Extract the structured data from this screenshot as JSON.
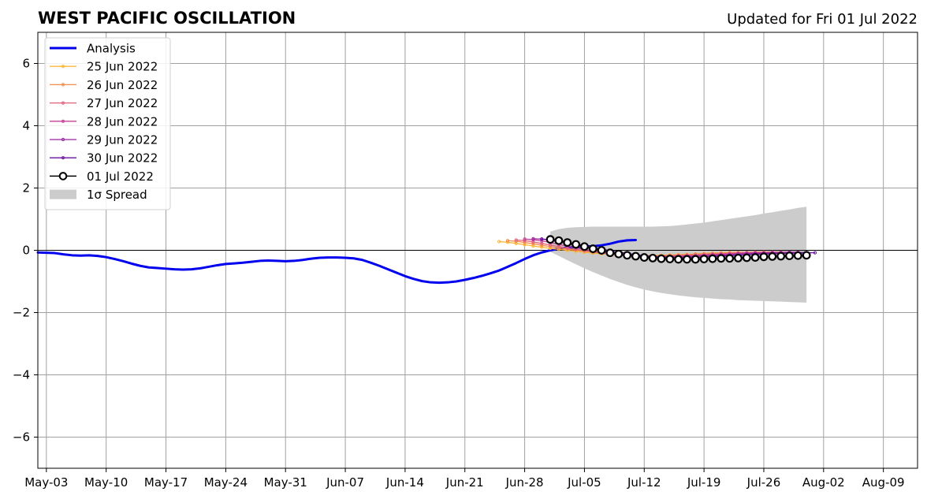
{
  "chart_data": {
    "type": "line",
    "title": "WEST PACIFIC OSCILLATION",
    "subtitle": "Updated for Fri 01 Jul 2022",
    "xlabel": "",
    "ylabel": "",
    "x_range": [
      "2022-05-02",
      "2022-08-13"
    ],
    "ylim": [
      -7,
      7
    ],
    "y_ticks": [
      -6,
      -4,
      -2,
      0,
      2,
      4,
      6
    ],
    "y_tick_labels": [
      "−6",
      "−4",
      "−2",
      "0",
      "2",
      "4",
      "6"
    ],
    "x_ticks": [
      "2022-05-03",
      "2022-05-10",
      "2022-05-17",
      "2022-05-24",
      "2022-05-31",
      "2022-06-07",
      "2022-06-14",
      "2022-06-21",
      "2022-06-28",
      "2022-07-05",
      "2022-07-12",
      "2022-07-19",
      "2022-07-26",
      "2022-08-02",
      "2022-08-09"
    ],
    "x_tick_labels": [
      "May-03",
      "May-10",
      "May-17",
      "May-24",
      "May-31",
      "Jun-07",
      "Jun-14",
      "Jun-21",
      "Jun-28",
      "Jul-05",
      "Jul-12",
      "Jul-19",
      "Jul-26",
      "Aug-02",
      "Aug-09"
    ],
    "grid": true,
    "zero_line": true,
    "legend_position": "upper-left",
    "legend": [
      {
        "label": "Analysis",
        "color": "#0000ee",
        "kind": "thick-line"
      },
      {
        "label": "25 Jun 2022",
        "color": "#fbb533",
        "kind": "line-dot"
      },
      {
        "label": "26 Jun 2022",
        "color": "#f58c46",
        "kind": "line-dot"
      },
      {
        "label": "27 Jun 2022",
        "color": "#e0607a",
        "kind": "line-dot"
      },
      {
        "label": "28 Jun 2022",
        "color": "#c53f93",
        "kind": "line-dot"
      },
      {
        "label": "29 Jun 2022",
        "color": "#9c22a4",
        "kind": "line-dot"
      },
      {
        "label": "30 Jun 2022",
        "color": "#6a0fa3",
        "kind": "line-dot"
      },
      {
        "label": "01 Jul 2022",
        "color": "#000000",
        "kind": "line-circle"
      },
      {
        "label": "1σ Spread",
        "color": "#cccccc",
        "kind": "patch"
      }
    ],
    "analysis": {
      "name": "Analysis",
      "color": "#0000ee",
      "start_date": "2022-05-02",
      "values": [
        -0.07,
        -0.08,
        -0.09,
        -0.13,
        -0.16,
        -0.17,
        -0.16,
        -0.18,
        -0.22,
        -0.28,
        -0.35,
        -0.43,
        -0.5,
        -0.55,
        -0.57,
        -0.59,
        -0.61,
        -0.62,
        -0.61,
        -0.58,
        -0.53,
        -0.48,
        -0.44,
        -0.42,
        -0.4,
        -0.37,
        -0.34,
        -0.33,
        -0.34,
        -0.35,
        -0.34,
        -0.31,
        -0.27,
        -0.24,
        -0.23,
        -0.23,
        -0.24,
        -0.26,
        -0.31,
        -0.4,
        -0.5,
        -0.61,
        -0.72,
        -0.83,
        -0.92,
        -0.99,
        -1.03,
        -1.04,
        -1.03,
        -1.0,
        -0.95,
        -0.89,
        -0.82,
        -0.74,
        -0.65,
        -0.53,
        -0.41,
        -0.28,
        -0.16,
        -0.07,
        0.0,
        0.05,
        0.09,
        0.11,
        0.12,
        0.13,
        0.16,
        0.21,
        0.28,
        0.32,
        0.33
      ]
    },
    "forecasts": [
      {
        "name": "25 Jun 2022",
        "color": "#fbb533",
        "start_date": "2022-06-25",
        "values": [
          0.28,
          0.26,
          0.22,
          0.18,
          0.14,
          0.1,
          0.06,
          0.03,
          0.0,
          -0.03,
          -0.06,
          -0.09,
          -0.11,
          -0.13,
          -0.15,
          -0.16,
          -0.17,
          -0.17,
          -0.17,
          -0.16,
          -0.15,
          -0.14,
          -0.13,
          -0.12,
          -0.1,
          -0.09,
          -0.08,
          -0.07,
          -0.07,
          -0.07,
          -0.06,
          -0.06,
          -0.06
        ]
      },
      {
        "name": "26 Jun 2022",
        "color": "#f58c46",
        "start_date": "2022-06-26",
        "values": [
          0.31,
          0.29,
          0.25,
          0.21,
          0.16,
          0.12,
          0.08,
          0.04,
          0.01,
          -0.03,
          -0.06,
          -0.09,
          -0.12,
          -0.14,
          -0.16,
          -0.17,
          -0.18,
          -0.18,
          -0.17,
          -0.16,
          -0.15,
          -0.14,
          -0.12,
          -0.11,
          -0.1,
          -0.09,
          -0.08,
          -0.07,
          -0.07,
          -0.06,
          -0.06,
          -0.06,
          -0.06
        ]
      },
      {
        "name": "27 Jun 2022",
        "color": "#e0607a",
        "start_date": "2022-06-27",
        "values": [
          0.33,
          0.31,
          0.27,
          0.22,
          0.17,
          0.12,
          0.07,
          0.03,
          -0.01,
          -0.05,
          -0.08,
          -0.11,
          -0.14,
          -0.16,
          -0.18,
          -0.19,
          -0.19,
          -0.19,
          -0.18,
          -0.17,
          -0.16,
          -0.15,
          -0.13,
          -0.12,
          -0.11,
          -0.1,
          -0.09,
          -0.08,
          -0.07,
          -0.07,
          -0.06,
          -0.06,
          -0.06
        ]
      },
      {
        "name": "28 Jun 2022",
        "color": "#c53f93",
        "start_date": "2022-06-28",
        "values": [
          0.36,
          0.34,
          0.3,
          0.25,
          0.19,
          0.13,
          0.08,
          0.03,
          -0.02,
          -0.06,
          -0.1,
          -0.13,
          -0.16,
          -0.18,
          -0.19,
          -0.2,
          -0.2,
          -0.2,
          -0.19,
          -0.18,
          -0.17,
          -0.16,
          -0.14,
          -0.13,
          -0.12,
          -0.1,
          -0.09,
          -0.08,
          -0.08,
          -0.07,
          -0.07,
          -0.06,
          -0.06
        ]
      },
      {
        "name": "29 Jun 2022",
        "color": "#9c22a4",
        "start_date": "2022-06-29",
        "values": [
          0.37,
          0.36,
          0.32,
          0.27,
          0.21,
          0.15,
          0.09,
          0.04,
          -0.01,
          -0.06,
          -0.1,
          -0.14,
          -0.17,
          -0.19,
          -0.21,
          -0.22,
          -0.22,
          -0.22,
          -0.21,
          -0.2,
          -0.18,
          -0.17,
          -0.15,
          -0.14,
          -0.12,
          -0.11,
          -0.1,
          -0.09,
          -0.08,
          -0.08,
          -0.07,
          -0.07,
          -0.07
        ]
      },
      {
        "name": "30 Jun 2022",
        "color": "#6a0fa3",
        "start_date": "2022-06-30",
        "values": [
          0.36,
          0.34,
          0.31,
          0.26,
          0.21,
          0.15,
          0.09,
          0.04,
          -0.01,
          -0.06,
          -0.1,
          -0.14,
          -0.17,
          -0.2,
          -0.22,
          -0.23,
          -0.24,
          -0.24,
          -0.23,
          -0.22,
          -0.2,
          -0.19,
          -0.17,
          -0.16,
          -0.14,
          -0.13,
          -0.12,
          -0.11,
          -0.1,
          -0.09,
          -0.09,
          -0.08,
          -0.08
        ]
      },
      {
        "name": "01 Jul 2022",
        "color": "#000000",
        "start_date": "2022-07-01",
        "values": [
          0.35,
          0.31,
          0.25,
          0.19,
          0.12,
          0.05,
          0.0,
          -0.08,
          -0.12,
          -0.16,
          -0.19,
          -0.23,
          -0.25,
          -0.27,
          -0.28,
          -0.29,
          -0.29,
          -0.29,
          -0.28,
          -0.27,
          -0.26,
          -0.26,
          -0.25,
          -0.24,
          -0.23,
          -0.21,
          -0.2,
          -0.19,
          -0.18,
          -0.17,
          -0.16
        ]
      }
    ],
    "spread": {
      "name": "1σ Spread",
      "color": "#cccccc",
      "start_date": "2022-07-01",
      "upper": [
        0.6,
        0.68,
        0.72,
        0.74,
        0.75,
        0.76,
        0.76,
        0.76,
        0.76,
        0.76,
        0.76,
        0.76,
        0.76,
        0.77,
        0.78,
        0.8,
        0.83,
        0.86,
        0.89,
        0.93,
        0.97,
        1.01,
        1.05,
        1.09,
        1.13,
        1.18,
        1.22,
        1.27,
        1.31,
        1.36,
        1.4
      ],
      "lower": [
        -0.05,
        -0.18,
        -0.32,
        -0.45,
        -0.58,
        -0.7,
        -0.81,
        -0.92,
        -1.02,
        -1.11,
        -1.19,
        -1.26,
        -1.32,
        -1.37,
        -1.41,
        -1.45,
        -1.48,
        -1.51,
        -1.53,
        -1.55,
        -1.57,
        -1.58,
        -1.6,
        -1.61,
        -1.62,
        -1.63,
        -1.64,
        -1.65,
        -1.66,
        -1.67,
        -1.68
      ]
    }
  }
}
